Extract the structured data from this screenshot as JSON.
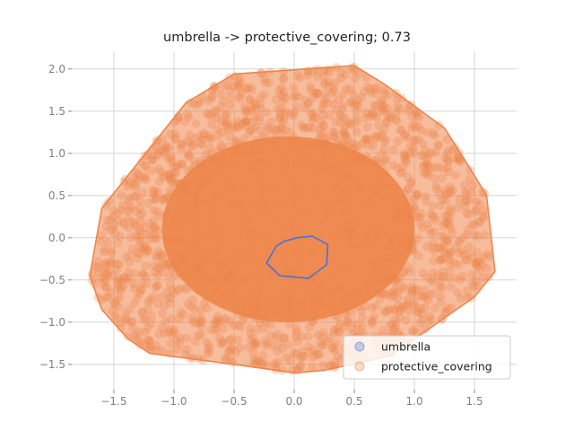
{
  "chart_data": {
    "type": "scatter",
    "title": "umbrella -> protective_covering; 0.73",
    "xlabel": "",
    "ylabel": "",
    "xlim": [
      -1.85,
      1.85
    ],
    "ylim": [
      -1.8,
      2.2
    ],
    "xticks": [
      -1.5,
      -1.0,
      -0.5,
      0.0,
      0.5,
      1.0,
      1.5
    ],
    "xtick_labels": [
      "−1.5",
      "−1.0",
      "−0.5",
      "0.0",
      "0.5",
      "1.0",
      "1.5"
    ],
    "yticks": [
      -1.5,
      -1.0,
      -0.5,
      0.0,
      0.5,
      1.0,
      1.5,
      2.0
    ],
    "ytick_labels": [
      "−1.5",
      "−1.0",
      "−0.5",
      "0.0",
      "0.5",
      "1.0",
      "1.5",
      "2.0"
    ],
    "grid": true,
    "legend_position": "lower-right",
    "series": [
      {
        "name": "umbrella",
        "color": "#4c72d0",
        "hull": [
          [
            0.15,
            0.02
          ],
          [
            0.28,
            -0.08
          ],
          [
            0.27,
            -0.32
          ],
          [
            0.12,
            -0.48
          ],
          [
            -0.12,
            -0.45
          ],
          [
            -0.23,
            -0.3
          ],
          [
            -0.15,
            -0.1
          ],
          [
            -0.08,
            -0.04
          ],
          [
            0.02,
            0.0
          ]
        ]
      },
      {
        "name": "protective_covering",
        "color": "#ee854a",
        "hull": [
          [
            0.5,
            2.04
          ],
          [
            -0.5,
            1.94
          ],
          [
            -0.9,
            1.6
          ],
          [
            -1.6,
            0.35
          ],
          [
            -1.7,
            -0.45
          ],
          [
            -1.6,
            -0.85
          ],
          [
            -1.38,
            -1.2
          ],
          [
            -1.2,
            -1.37
          ],
          [
            -0.5,
            -1.5
          ],
          [
            0.0,
            -1.6
          ],
          [
            0.25,
            -1.57
          ],
          [
            0.8,
            -1.4
          ],
          [
            1.5,
            -0.7
          ],
          [
            1.67,
            -0.4
          ],
          [
            1.6,
            0.5
          ],
          [
            1.45,
            0.85
          ],
          [
            1.25,
            1.3
          ],
          [
            0.75,
            1.82
          ]
        ]
      }
    ]
  }
}
